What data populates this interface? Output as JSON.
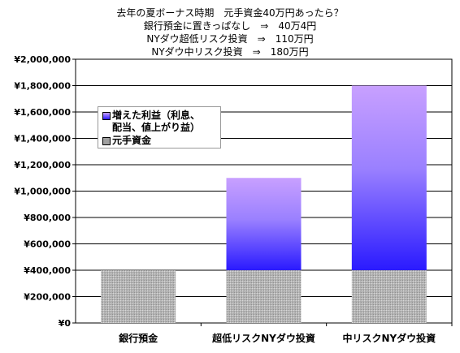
{
  "title": {
    "lines": [
      "去年の夏ボーナス時期　元手資金40万円あったら？",
      "銀行預金に置きっぱなし　⇒　40万4円",
      "NYダウ超低リスク投資　⇒　110万円",
      "NYダウ中リスク投資　⇒　180万円"
    ]
  },
  "legend": {
    "items": [
      {
        "label": "増えた利益（利息、配当、値上がり益）",
        "label_line1": "増えた利益（利息、",
        "label_line2": "配当、値上がり益）",
        "color": "#7f7fff"
      },
      {
        "label": "元手資金",
        "color": "#a0a0a0"
      }
    ]
  },
  "chart_data": {
    "type": "bar",
    "stacked": true,
    "categories": [
      "銀行預金",
      "超低リスクNYダウ投資",
      "中リスクNYダウ投資"
    ],
    "series": [
      {
        "name": "元手資金",
        "values": [
          400000,
          400000,
          400000
        ],
        "color": "#a0a0a0"
      },
      {
        "name": "増えた利益（利息、配当、値上がり益）",
        "values": [
          4,
          700000,
          1400000
        ],
        "color": "#7f7fff"
      }
    ],
    "yticks": [
      "¥0",
      "¥200,000",
      "¥400,000",
      "¥600,000",
      "¥800,000",
      "¥1,000,000",
      "¥1,200,000",
      "¥1,400,000",
      "¥1,600,000",
      "¥1,800,000",
      "¥2,000,000"
    ],
    "ylim": [
      0,
      2000000
    ],
    "grid": true,
    "legend_position": "top-left"
  }
}
